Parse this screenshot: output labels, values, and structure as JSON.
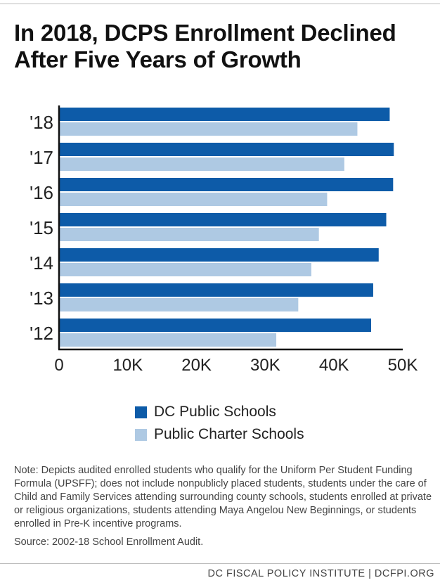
{
  "title_lines": [
    "In 2018, DCPS Enrollment Declined",
    "After Five Years of Growth"
  ],
  "chart_data": {
    "type": "bar",
    "orientation": "horizontal",
    "categories": [
      "'18",
      "'17",
      "'16",
      "'15",
      "'14",
      "'13",
      "'12"
    ],
    "series": [
      {
        "name": "DC Public Schools",
        "color": "#0d5ba8",
        "values": [
          48100,
          48700,
          48600,
          47600,
          46500,
          45700,
          45400
        ]
      },
      {
        "name": "Public Charter Schools",
        "color": "#aec9e3",
        "values": [
          43400,
          41500,
          39000,
          37800,
          36700,
          34800,
          31600
        ]
      }
    ],
    "xlim": [
      0,
      50000
    ],
    "xticks": [
      0,
      10000,
      20000,
      30000,
      40000,
      50000
    ],
    "xtick_labels": [
      "0",
      "10K",
      "20K",
      "30K",
      "40K",
      "50K"
    ],
    "legend_position": "bottom",
    "grid": false
  },
  "note": "Note: Depicts audited enrolled students who qualify for the Uniform Per Student Funding Formula (UPSFF); does not include nonpublicly placed students, students under the care of Child and Family Services attending surrounding county schools, students enrolled at private or religious organizations, students attending Maya Angelou New Beginnings, or students enrolled in Pre-K incentive programs.",
  "source": "Source: 2002-18 School Enrollment Audit.",
  "footer": "DC FISCAL POLICY INSTITUTE | DCFPI.ORG"
}
